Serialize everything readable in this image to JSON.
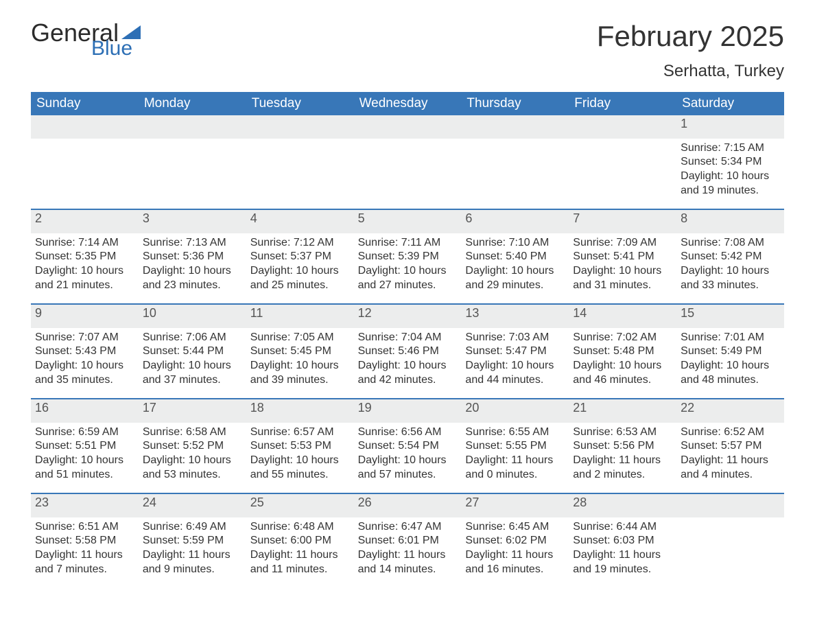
{
  "logo": {
    "text_general": "General",
    "text_blue": "Blue"
  },
  "title": {
    "month": "February 2025",
    "location": "Serhatta, Turkey"
  },
  "colors": {
    "header_bg": "#3877b8",
    "header_text": "#ffffff",
    "row_divider": "#3877b8",
    "daynum_band_bg": "#eceded",
    "text": "#333333",
    "logo_blue": "#2d6fb5",
    "page_bg": "#ffffff"
  },
  "weekdays": [
    "Sunday",
    "Monday",
    "Tuesday",
    "Wednesday",
    "Thursday",
    "Friday",
    "Saturday"
  ],
  "weeks": [
    {
      "days": [
        {
          "num": "",
          "sunrise": "",
          "sunset": "",
          "daylight1": "",
          "daylight2": ""
        },
        {
          "num": "",
          "sunrise": "",
          "sunset": "",
          "daylight1": "",
          "daylight2": ""
        },
        {
          "num": "",
          "sunrise": "",
          "sunset": "",
          "daylight1": "",
          "daylight2": ""
        },
        {
          "num": "",
          "sunrise": "",
          "sunset": "",
          "daylight1": "",
          "daylight2": ""
        },
        {
          "num": "",
          "sunrise": "",
          "sunset": "",
          "daylight1": "",
          "daylight2": ""
        },
        {
          "num": "",
          "sunrise": "",
          "sunset": "",
          "daylight1": "",
          "daylight2": ""
        },
        {
          "num": "1",
          "sunrise": "Sunrise: 7:15 AM",
          "sunset": "Sunset: 5:34 PM",
          "daylight1": "Daylight: 10 hours",
          "daylight2": "and 19 minutes."
        }
      ]
    },
    {
      "days": [
        {
          "num": "2",
          "sunrise": "Sunrise: 7:14 AM",
          "sunset": "Sunset: 5:35 PM",
          "daylight1": "Daylight: 10 hours",
          "daylight2": "and 21 minutes."
        },
        {
          "num": "3",
          "sunrise": "Sunrise: 7:13 AM",
          "sunset": "Sunset: 5:36 PM",
          "daylight1": "Daylight: 10 hours",
          "daylight2": "and 23 minutes."
        },
        {
          "num": "4",
          "sunrise": "Sunrise: 7:12 AM",
          "sunset": "Sunset: 5:37 PM",
          "daylight1": "Daylight: 10 hours",
          "daylight2": "and 25 minutes."
        },
        {
          "num": "5",
          "sunrise": "Sunrise: 7:11 AM",
          "sunset": "Sunset: 5:39 PM",
          "daylight1": "Daylight: 10 hours",
          "daylight2": "and 27 minutes."
        },
        {
          "num": "6",
          "sunrise": "Sunrise: 7:10 AM",
          "sunset": "Sunset: 5:40 PM",
          "daylight1": "Daylight: 10 hours",
          "daylight2": "and 29 minutes."
        },
        {
          "num": "7",
          "sunrise": "Sunrise: 7:09 AM",
          "sunset": "Sunset: 5:41 PM",
          "daylight1": "Daylight: 10 hours",
          "daylight2": "and 31 minutes."
        },
        {
          "num": "8",
          "sunrise": "Sunrise: 7:08 AM",
          "sunset": "Sunset: 5:42 PM",
          "daylight1": "Daylight: 10 hours",
          "daylight2": "and 33 minutes."
        }
      ]
    },
    {
      "days": [
        {
          "num": "9",
          "sunrise": "Sunrise: 7:07 AM",
          "sunset": "Sunset: 5:43 PM",
          "daylight1": "Daylight: 10 hours",
          "daylight2": "and 35 minutes."
        },
        {
          "num": "10",
          "sunrise": "Sunrise: 7:06 AM",
          "sunset": "Sunset: 5:44 PM",
          "daylight1": "Daylight: 10 hours",
          "daylight2": "and 37 minutes."
        },
        {
          "num": "11",
          "sunrise": "Sunrise: 7:05 AM",
          "sunset": "Sunset: 5:45 PM",
          "daylight1": "Daylight: 10 hours",
          "daylight2": "and 39 minutes."
        },
        {
          "num": "12",
          "sunrise": "Sunrise: 7:04 AM",
          "sunset": "Sunset: 5:46 PM",
          "daylight1": "Daylight: 10 hours",
          "daylight2": "and 42 minutes."
        },
        {
          "num": "13",
          "sunrise": "Sunrise: 7:03 AM",
          "sunset": "Sunset: 5:47 PM",
          "daylight1": "Daylight: 10 hours",
          "daylight2": "and 44 minutes."
        },
        {
          "num": "14",
          "sunrise": "Sunrise: 7:02 AM",
          "sunset": "Sunset: 5:48 PM",
          "daylight1": "Daylight: 10 hours",
          "daylight2": "and 46 minutes."
        },
        {
          "num": "15",
          "sunrise": "Sunrise: 7:01 AM",
          "sunset": "Sunset: 5:49 PM",
          "daylight1": "Daylight: 10 hours",
          "daylight2": "and 48 minutes."
        }
      ]
    },
    {
      "days": [
        {
          "num": "16",
          "sunrise": "Sunrise: 6:59 AM",
          "sunset": "Sunset: 5:51 PM",
          "daylight1": "Daylight: 10 hours",
          "daylight2": "and 51 minutes."
        },
        {
          "num": "17",
          "sunrise": "Sunrise: 6:58 AM",
          "sunset": "Sunset: 5:52 PM",
          "daylight1": "Daylight: 10 hours",
          "daylight2": "and 53 minutes."
        },
        {
          "num": "18",
          "sunrise": "Sunrise: 6:57 AM",
          "sunset": "Sunset: 5:53 PM",
          "daylight1": "Daylight: 10 hours",
          "daylight2": "and 55 minutes."
        },
        {
          "num": "19",
          "sunrise": "Sunrise: 6:56 AM",
          "sunset": "Sunset: 5:54 PM",
          "daylight1": "Daylight: 10 hours",
          "daylight2": "and 57 minutes."
        },
        {
          "num": "20",
          "sunrise": "Sunrise: 6:55 AM",
          "sunset": "Sunset: 5:55 PM",
          "daylight1": "Daylight: 11 hours",
          "daylight2": "and 0 minutes."
        },
        {
          "num": "21",
          "sunrise": "Sunrise: 6:53 AM",
          "sunset": "Sunset: 5:56 PM",
          "daylight1": "Daylight: 11 hours",
          "daylight2": "and 2 minutes."
        },
        {
          "num": "22",
          "sunrise": "Sunrise: 6:52 AM",
          "sunset": "Sunset: 5:57 PM",
          "daylight1": "Daylight: 11 hours",
          "daylight2": "and 4 minutes."
        }
      ]
    },
    {
      "days": [
        {
          "num": "23",
          "sunrise": "Sunrise: 6:51 AM",
          "sunset": "Sunset: 5:58 PM",
          "daylight1": "Daylight: 11 hours",
          "daylight2": "and 7 minutes."
        },
        {
          "num": "24",
          "sunrise": "Sunrise: 6:49 AM",
          "sunset": "Sunset: 5:59 PM",
          "daylight1": "Daylight: 11 hours",
          "daylight2": "and 9 minutes."
        },
        {
          "num": "25",
          "sunrise": "Sunrise: 6:48 AM",
          "sunset": "Sunset: 6:00 PM",
          "daylight1": "Daylight: 11 hours",
          "daylight2": "and 11 minutes."
        },
        {
          "num": "26",
          "sunrise": "Sunrise: 6:47 AM",
          "sunset": "Sunset: 6:01 PM",
          "daylight1": "Daylight: 11 hours",
          "daylight2": "and 14 minutes."
        },
        {
          "num": "27",
          "sunrise": "Sunrise: 6:45 AM",
          "sunset": "Sunset: 6:02 PM",
          "daylight1": "Daylight: 11 hours",
          "daylight2": "and 16 minutes."
        },
        {
          "num": "28",
          "sunrise": "Sunrise: 6:44 AM",
          "sunset": "Sunset: 6:03 PM",
          "daylight1": "Daylight: 11 hours",
          "daylight2": "and 19 minutes."
        },
        {
          "num": "",
          "sunrise": "",
          "sunset": "",
          "daylight1": "",
          "daylight2": ""
        }
      ]
    }
  ]
}
